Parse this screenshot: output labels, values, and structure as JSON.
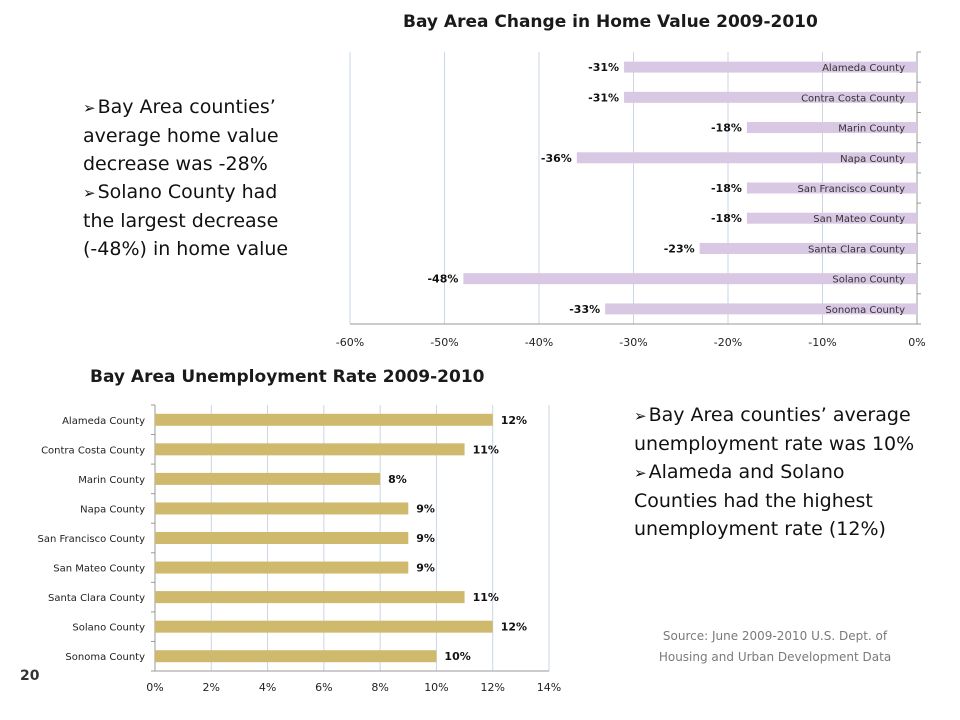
{
  "page_number": "20",
  "source_text": "Source:   June 2009-2010 U.S. Dept. of Housing and Urban Development Data",
  "home_value_notes": [
    "Bay Area counties’ average home value decrease was -28%",
    "Solano County had the largest decrease (-48%) in home value"
  ],
  "unemployment_notes": [
    "Bay Area counties’ average unemployment rate was 10%",
    "Alameda and Solano Counties had the highest unemployment rate (12%)"
  ],
  "chart_data": [
    {
      "type": "bar",
      "orientation": "horizontal",
      "title": "Bay Area Change in Home Value 2009-2010",
      "categories": [
        "Alameda County",
        "Contra Costa County",
        "Marin County",
        "Napa County",
        "San Francisco County",
        "San Mateo County",
        "Santa Clara County",
        "Solano County",
        "Sonoma County"
      ],
      "values": [
        -31,
        -31,
        -18,
        -36,
        -18,
        -18,
        -23,
        -48,
        -33
      ],
      "value_labels": [
        "-31%",
        "-31%",
        "-18%",
        "-36%",
        "-18%",
        "-18%",
        "-23%",
        "-48%",
        "-33%"
      ],
      "xlim": [
        -60,
        0
      ],
      "x_ticks": [
        "-60%",
        "-50%",
        "-40%",
        "-30%",
        "-20%",
        "-10%",
        "0%"
      ],
      "xlabel": "",
      "ylabel": "",
      "grid": true,
      "bar_color": "#d9c8e4",
      "category_labels_position": "inside-bar-right"
    },
    {
      "type": "bar",
      "orientation": "horizontal",
      "title": "Bay Area Unemployment Rate 2009-2010",
      "categories": [
        "Alameda County",
        "Contra Costa County",
        "Marin County",
        "Napa County",
        "San Francisco County",
        "San Mateo County",
        "Santa Clara County",
        "Solano County",
        "Sonoma County"
      ],
      "values": [
        12,
        11,
        8,
        9,
        9,
        9,
        11,
        12,
        10
      ],
      "value_labels": [
        "12%",
        "11%",
        "8%",
        "9%",
        "9%",
        "9%",
        "11%",
        "12%",
        "10%"
      ],
      "xlim": [
        0,
        14
      ],
      "x_ticks": [
        "0%",
        "2%",
        "4%",
        "6%",
        "8%",
        "10%",
        "12%",
        "14%"
      ],
      "xlabel": "",
      "ylabel": "",
      "grid": true,
      "bar_color": "#cfb96c",
      "category_labels_position": "left-axis"
    }
  ]
}
